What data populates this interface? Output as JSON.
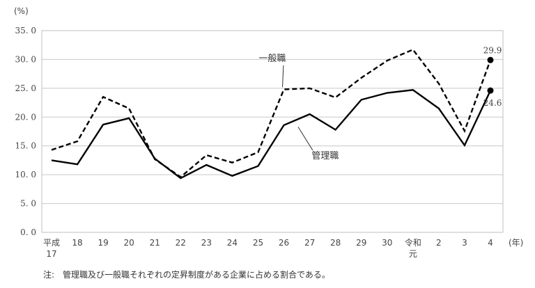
{
  "chart_data": {
    "type": "line",
    "y_unit": "(%)",
    "x_unit": "(年)",
    "categories": [
      "平成\n17",
      "18",
      "19",
      "20",
      "21",
      "22",
      "23",
      "24",
      "25",
      "26",
      "27",
      "28",
      "29",
      "30",
      "令和\n元",
      "2",
      "3",
      "4"
    ],
    "ylim": [
      0,
      35
    ],
    "yticks": [
      "0. 0",
      "5. 0",
      "10. 0",
      "15. 0",
      "20. 0",
      "25. 0",
      "30. 0",
      "35. 0"
    ],
    "ytick_values": [
      0,
      5,
      10,
      15,
      20,
      25,
      30,
      35
    ],
    "grid": true,
    "series": [
      {
        "name": "一般職",
        "style": "dashed",
        "color": "#000000",
        "values": [
          14.3,
          15.8,
          23.5,
          21.5,
          12.7,
          9.6,
          13.4,
          12.1,
          13.9,
          24.8,
          25.0,
          23.4,
          26.8,
          29.8,
          31.7,
          25.8,
          17.6,
          29.9
        ]
      },
      {
        "name": "管理職",
        "style": "solid",
        "color": "#000000",
        "values": [
          12.5,
          11.8,
          18.7,
          19.8,
          12.8,
          9.4,
          11.7,
          9.8,
          11.5,
          18.6,
          20.5,
          17.8,
          23.0,
          24.2,
          24.7,
          21.5,
          15.1,
          24.6
        ]
      }
    ],
    "annotations": {
      "last_general": "29.9",
      "last_manager": "24.6"
    },
    "note": "注:　管理職及び一般職それぞれの定昇制度がある企業に占める割合である。"
  }
}
